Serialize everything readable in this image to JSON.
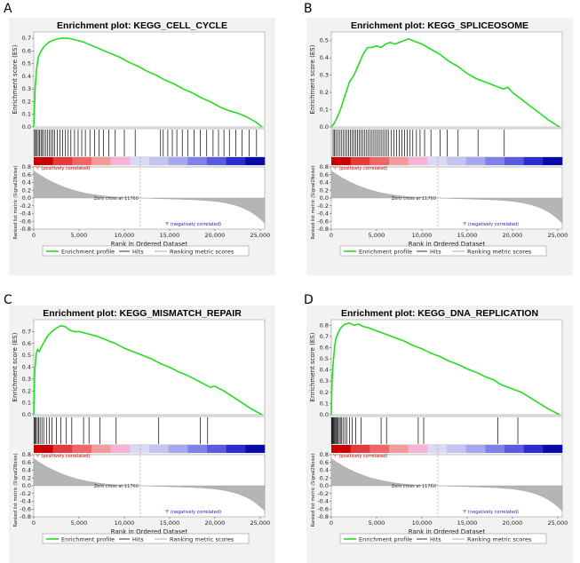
{
  "chart_data": [
    {
      "type": "line",
      "panel": "A",
      "title": "Enrichment plot: KEGG_CELL_CYCLE",
      "ylabel": "Enrichment score (ES)",
      "ylabel2": "Ranked list metric (Signal2Noise)",
      "xlabel": "Rank in Ordered Dataset",
      "ylim": [
        0,
        0.75
      ],
      "yticks": [
        "0.0",
        "0.1",
        "0.2",
        "0.3",
        "0.4",
        "0.5",
        "0.6",
        "0.7"
      ],
      "metric_yticks": [
        "0.8",
        "0.6",
        "0.4",
        "0.2",
        "0.0",
        "-0.2",
        "-0.4",
        "-0.6",
        "-0.8"
      ],
      "xticks": [
        "0",
        "5,000",
        "10,000",
        "15,000",
        "20,000",
        "25,000"
      ],
      "xmax": 25500,
      "es_curve": {
        "x": [
          0,
          150,
          300,
          500,
          800,
          1200,
          1700,
          2300,
          3000,
          3800,
          4500,
          5500,
          6500,
          7500,
          8500,
          9500,
          10500,
          11500,
          12500,
          13500,
          14500,
          15500,
          16500,
          17500,
          18500,
          19500,
          20500,
          21500,
          22500,
          23500,
          24500,
          25200
        ],
        "y": [
          0.0,
          0.3,
          0.45,
          0.55,
          0.6,
          0.64,
          0.67,
          0.69,
          0.7,
          0.7,
          0.69,
          0.67,
          0.64,
          0.61,
          0.58,
          0.55,
          0.51,
          0.48,
          0.44,
          0.41,
          0.37,
          0.34,
          0.3,
          0.27,
          0.23,
          0.2,
          0.16,
          0.13,
          0.11,
          0.08,
          0.04,
          0.0
        ]
      },
      "hits": [
        100,
        200,
        350,
        500,
        650,
        800,
        950,
        1100,
        1300,
        1500,
        1700,
        1900,
        2100,
        2300,
        2600,
        2900,
        3200,
        3500,
        3800,
        4100,
        4500,
        4900,
        5300,
        5700,
        6200,
        6700,
        7200,
        7700,
        8300,
        9000,
        10000,
        11200,
        14000,
        14300,
        14800,
        15300,
        15800,
        16400,
        17000,
        17700,
        18400,
        19100,
        19800,
        20400,
        21000,
        21600,
        22300,
        23000,
        23800,
        24600
      ],
      "legend": [
        "Enrichment profile",
        "Hits",
        "Ranking metric scores"
      ],
      "annotations": {
        "pos": "'r' (positively correlated)",
        "zero": "Zero cross at 11760",
        "neg": "'f' (negatively correlated)"
      }
    },
    {
      "type": "line",
      "panel": "B",
      "title": "Enrichment plot: KEGG_SPLICEOSOME",
      "ylabel": "Enrichment score (ES)",
      "ylabel2": "Ranked list metric (Signal2Noise)",
      "xlabel": "Rank in Ordered Dataset",
      "ylim": [
        0,
        0.55
      ],
      "yticks": [
        "0.0",
        "0.1",
        "0.2",
        "0.3",
        "0.4",
        "0.5"
      ],
      "metric_yticks": [
        "0.8",
        "0.6",
        "0.4",
        "0.2",
        "0.0",
        "-0.2",
        "-0.4",
        "-0.6",
        "-0.8"
      ],
      "xticks": [
        "0",
        "5,000",
        "10,000",
        "15,000",
        "20,000",
        "25,000"
      ],
      "xmax": 25500,
      "es_curve": {
        "x": [
          0,
          300,
          600,
          1000,
          1500,
          2000,
          2500,
          3000,
          3500,
          4000,
          4500,
          5000,
          5500,
          6000,
          6500,
          7000,
          7500,
          8000,
          8500,
          9000,
          10000,
          11000,
          12000,
          13000,
          14000,
          15000,
          16000,
          17000,
          18000,
          19000,
          19500,
          20000,
          21000,
          22000,
          23000,
          24000,
          25200
        ],
        "y": [
          0.0,
          0.02,
          0.05,
          0.1,
          0.18,
          0.26,
          0.3,
          0.36,
          0.42,
          0.46,
          0.46,
          0.47,
          0.46,
          0.48,
          0.49,
          0.48,
          0.49,
          0.5,
          0.51,
          0.5,
          0.48,
          0.45,
          0.42,
          0.38,
          0.35,
          0.31,
          0.28,
          0.26,
          0.24,
          0.22,
          0.23,
          0.2,
          0.16,
          0.12,
          0.08,
          0.04,
          0.0
        ]
      },
      "hits": [
        200,
        350,
        500,
        700,
        900,
        1100,
        1300,
        1500,
        1700,
        1900,
        2100,
        2300,
        2500,
        2700,
        2900,
        3100,
        3300,
        3500,
        3700,
        3900,
        4100,
        4300,
        4500,
        4700,
        4900,
        5100,
        5300,
        5500,
        5700,
        5900,
        6100,
        6300,
        6600,
        6900,
        7200,
        7500,
        7800,
        8100,
        8400,
        8700,
        9000,
        9400,
        9800,
        10300,
        11000,
        12000,
        12800,
        14000,
        16200,
        19100
      ],
      "legend": [
        "Enrichment profile",
        "Hits",
        "Ranking metric scores"
      ],
      "annotations": {
        "pos": "'r' (positively correlated)",
        "zero": "Zero cross at 11760",
        "neg": "'f' (negatively correlated)"
      }
    },
    {
      "type": "line",
      "panel": "C",
      "title": "Enrichment plot: KEGG_MISMATCH_REPAIR",
      "ylabel": "Enrichment score (ES)",
      "ylabel2": "Ranked list metric (Signal2Noise)",
      "xlabel": "Rank in Ordered Dataset",
      "ylim": [
        0,
        0.8
      ],
      "yticks": [
        "0.0",
        "0.1",
        "0.2",
        "0.3",
        "0.4",
        "0.5",
        "0.6",
        "0.7"
      ],
      "metric_yticks": [
        "0.8",
        "0.6",
        "0.4",
        "0.2",
        "0.0",
        "-0.2",
        "-0.4",
        "-0.6",
        "-0.8"
      ],
      "xticks": [
        "0",
        "5,000",
        "10,000",
        "15,000",
        "20,000",
        "25,000"
      ],
      "xmax": 25500,
      "es_curve": {
        "x": [
          0,
          100,
          250,
          400,
          600,
          900,
          1200,
          1500,
          2000,
          2500,
          3000,
          3500,
          4000,
          4500,
          5000,
          5500,
          6000,
          7000,
          8000,
          9000,
          10000,
          11000,
          12000,
          13000,
          14000,
          15000,
          16000,
          17000,
          18000,
          19000,
          19500,
          20000,
          21000,
          22000,
          23000,
          24000,
          25200
        ],
        "y": [
          0.0,
          0.35,
          0.5,
          0.55,
          0.53,
          0.58,
          0.62,
          0.66,
          0.7,
          0.73,
          0.75,
          0.74,
          0.71,
          0.7,
          0.7,
          0.69,
          0.68,
          0.66,
          0.63,
          0.6,
          0.56,
          0.53,
          0.5,
          0.47,
          0.43,
          0.4,
          0.36,
          0.33,
          0.29,
          0.25,
          0.23,
          0.24,
          0.2,
          0.15,
          0.1,
          0.05,
          0.0
        ]
      },
      "hits": [
        50,
        150,
        250,
        400,
        550,
        700,
        900,
        1100,
        1400,
        1700,
        2000,
        2500,
        3000,
        3600,
        4200,
        5500,
        6100,
        7300,
        9100,
        13800,
        18400,
        19200
      ],
      "legend": [
        "Enrichment profile",
        "Hits",
        "Ranking metric scores"
      ],
      "annotations": {
        "pos": "'r' (positively correlated)",
        "zero": "Zero cross at 11760",
        "neg": "'f' (negatively correlated)"
      }
    },
    {
      "type": "line",
      "panel": "D",
      "title": "Enrichment plot: KEGG_DNA_REPLICATION",
      "ylabel": "Enrichment score (ES)",
      "ylabel2": "Ranked list metric (Signal2Noise)",
      "xlabel": "Rank in Ordered Dataset",
      "ylim": [
        0,
        0.85
      ],
      "yticks": [
        "0.0",
        "0.1",
        "0.2",
        "0.3",
        "0.4",
        "0.5",
        "0.6",
        "0.7",
        "0.8"
      ],
      "metric_yticks": [
        "0.8",
        "0.6",
        "0.4",
        "0.2",
        "0.0",
        "-0.2",
        "-0.4",
        "-0.6",
        "-0.8"
      ],
      "xticks": [
        "0",
        "5,000",
        "10,000",
        "15,000",
        "20,000",
        "25,000"
      ],
      "xmax": 25500,
      "es_curve": {
        "x": [
          0,
          80,
          200,
          350,
          500,
          700,
          900,
          1200,
          1500,
          2000,
          2500,
          3000,
          3500,
          4000,
          5000,
          6000,
          7000,
          8000,
          9000,
          10000,
          11000,
          12000,
          13000,
          14000,
          15000,
          16000,
          17000,
          18000,
          18500,
          19000,
          20000,
          21000,
          22000,
          23000,
          24000,
          25200
        ],
        "y": [
          0.0,
          0.3,
          0.45,
          0.6,
          0.68,
          0.72,
          0.76,
          0.79,
          0.81,
          0.82,
          0.8,
          0.81,
          0.79,
          0.78,
          0.75,
          0.72,
          0.69,
          0.66,
          0.62,
          0.59,
          0.55,
          0.52,
          0.48,
          0.45,
          0.41,
          0.38,
          0.34,
          0.31,
          0.28,
          0.26,
          0.23,
          0.2,
          0.15,
          0.1,
          0.05,
          0.0
        ]
      },
      "hits": [
        30,
        100,
        180,
        260,
        340,
        420,
        520,
        620,
        740,
        880,
        1000,
        1150,
        1300,
        1500,
        1700,
        2000,
        2300,
        2700,
        3300,
        5500,
        6100,
        9600,
        10200,
        18400,
        20600
      ],
      "legend": [
        "Enrichment profile",
        "Hits",
        "Ranking metric scores"
      ],
      "annotations": {
        "pos": "'r' (positively correlated)",
        "zero": "Zero cross at 11760",
        "neg": "'f' (negatively correlated)"
      }
    }
  ]
}
